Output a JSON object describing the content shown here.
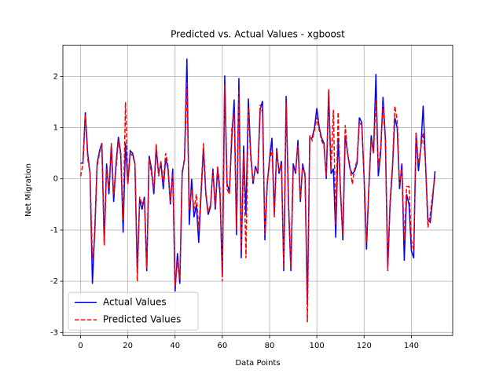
{
  "chart_data": {
    "type": "line",
    "title": "Predicted vs. Actual Values - xgboost",
    "x_label": "Data Points",
    "y_label": "Net Migration",
    "x": [
      0,
      1,
      2,
      3,
      4,
      5,
      6,
      7,
      8,
      9,
      10,
      11,
      12,
      13,
      14,
      15,
      16,
      17,
      18,
      19,
      20,
      21,
      22,
      23,
      24,
      25,
      26,
      27,
      28,
      29,
      30,
      31,
      32,
      33,
      34,
      35,
      36,
      37,
      38,
      39,
      40,
      41,
      42,
      43,
      44,
      45,
      46,
      47,
      48,
      49,
      50,
      51,
      52,
      53,
      54,
      55,
      56,
      57,
      58,
      59,
      60,
      61,
      62,
      63,
      64,
      65,
      66,
      67,
      68,
      69,
      70,
      71,
      72,
      73,
      74,
      75,
      76,
      77,
      78,
      79,
      80,
      81,
      82,
      83,
      84,
      85,
      86,
      87,
      88,
      89,
      90,
      91,
      92,
      93,
      94,
      95,
      96,
      97,
      98,
      99,
      100,
      101,
      102,
      103,
      104,
      105,
      106,
      107,
      108,
      109,
      110,
      111,
      112,
      113,
      114,
      115,
      116,
      117,
      118,
      119,
      120,
      121,
      122,
      123,
      124,
      125,
      126,
      127,
      128,
      129,
      130,
      131,
      132,
      133,
      134,
      135,
      136,
      137,
      138,
      139,
      140,
      141,
      142,
      143,
      144,
      145,
      146,
      147,
      148,
      149,
      150
    ],
    "series": [
      {
        "name": "Actual Values",
        "color": "#0000ff",
        "dash": "solid",
        "values": [
          0.3,
          0.32,
          1.3,
          0.5,
          0.1,
          -2.05,
          -1.0,
          0.3,
          0.55,
          0.7,
          -1.25,
          0.3,
          -0.3,
          0.65,
          -0.45,
          0.3,
          0.82,
          0.5,
          -1.05,
          0.7,
          -0.1,
          0.55,
          0.5,
          0.3,
          -1.8,
          -0.4,
          -0.6,
          -0.35,
          -1.8,
          0.45,
          0.2,
          -0.3,
          0.6,
          0.1,
          0.3,
          -0.2,
          0.4,
          0.2,
          -0.5,
          0.2,
          -2.2,
          -1.45,
          -2.05,
          0.1,
          0.4,
          2.35,
          -0.9,
          0.0,
          -0.75,
          -0.5,
          -1.25,
          -0.3,
          0.6,
          -0.3,
          -0.7,
          -0.55,
          0.2,
          -0.6,
          0.2,
          -0.3,
          -1.9,
          2.02,
          -0.1,
          -0.25,
          0.8,
          1.55,
          -1.1,
          1.97,
          -1.55,
          0.65,
          -0.7,
          1.57,
          0.5,
          -0.1,
          0.25,
          0.1,
          1.35,
          1.52,
          -1.2,
          -0.1,
          0.4,
          0.8,
          -0.7,
          0.6,
          0.1,
          0.35,
          -1.8,
          1.62,
          -0.5,
          -1.8,
          0.3,
          0.1,
          0.76,
          -0.45,
          0.3,
          0.05,
          -2.45,
          0.8,
          0.8,
          1.0,
          1.38,
          1.0,
          0.8,
          0.7,
          0.0,
          1.7,
          0.1,
          0.2,
          -1.15,
          0.8,
          -0.2,
          -1.2,
          0.85,
          0.5,
          0.2,
          0.1,
          0.15,
          0.3,
          1.2,
          1.1,
          0.0,
          -1.38,
          -0.2,
          0.85,
          0.5,
          2.05,
          0.05,
          0.5,
          1.6,
          0.8,
          -1.75,
          -0.5,
          0.2,
          1.2,
          1.0,
          -0.2,
          0.3,
          -1.6,
          -0.3,
          -0.5,
          -1.4,
          -1.55,
          0.9,
          0.15,
          0.6,
          1.43,
          0.3,
          -0.8,
          -0.85,
          -0.4,
          0.15
        ]
      },
      {
        "name": "Predicted Values",
        "color": "#ff0000",
        "dash": "dashed",
        "values": [
          0.05,
          0.3,
          1.25,
          0.4,
          0.1,
          -1.6,
          -1.1,
          0.25,
          0.5,
          0.7,
          -1.3,
          0.2,
          -0.2,
          0.7,
          -0.3,
          0.2,
          0.75,
          0.45,
          -0.8,
          1.5,
          -0.1,
          0.5,
          0.45,
          0.3,
          -2.0,
          -0.35,
          -0.5,
          -0.4,
          -1.75,
          0.4,
          0.1,
          -0.2,
          0.68,
          0.05,
          0.35,
          -0.1,
          0.5,
          0.25,
          -0.45,
          0.1,
          -2.1,
          -1.6,
          -1.95,
          0.15,
          0.35,
          1.9,
          -0.6,
          -0.2,
          -0.6,
          -0.3,
          -1.0,
          -0.2,
          0.7,
          -0.25,
          -0.65,
          -0.5,
          0.15,
          -0.55,
          0.25,
          -0.2,
          -2.0,
          1.85,
          -0.2,
          -0.3,
          1.0,
          1.3,
          -1.0,
          1.75,
          -1.4,
          0.5,
          -1.55,
          1.4,
          0.4,
          -0.05,
          0.2,
          0.15,
          1.45,
          1.3,
          -1.1,
          -0.05,
          0.35,
          0.6,
          -0.75,
          0.55,
          0.15,
          0.3,
          -1.75,
          1.5,
          -0.4,
          -1.75,
          0.2,
          0.15,
          0.65,
          -0.4,
          0.25,
          0.1,
          -2.8,
          0.85,
          0.75,
          0.95,
          1.2,
          0.95,
          0.75,
          0.65,
          0.05,
          1.75,
          0.15,
          1.35,
          -0.9,
          1.3,
          -0.3,
          -1.1,
          1.05,
          0.5,
          0.25,
          -0.1,
          0.2,
          0.35,
          1.1,
          1.05,
          0.05,
          -1.25,
          -0.15,
          0.75,
          0.5,
          1.55,
          0.2,
          0.6,
          1.45,
          0.75,
          -1.8,
          -0.4,
          0.25,
          1.42,
          1.15,
          -0.1,
          0.2,
          -1.2,
          -0.15,
          -0.15,
          -1.2,
          -1.4,
          0.9,
          0.3,
          0.6,
          0.9,
          0.3,
          -0.95,
          -0.7,
          -0.3,
          0.05
        ]
      }
    ],
    "xlim": [
      -7.5,
      157.5
    ],
    "ylim": [
      -3.06,
      2.61
    ],
    "xticks": [
      0,
      20,
      40,
      60,
      80,
      100,
      120,
      140
    ],
    "yticks": [
      -3,
      -2,
      -1,
      0,
      1,
      2
    ],
    "grid": true,
    "legend": "lower left"
  }
}
